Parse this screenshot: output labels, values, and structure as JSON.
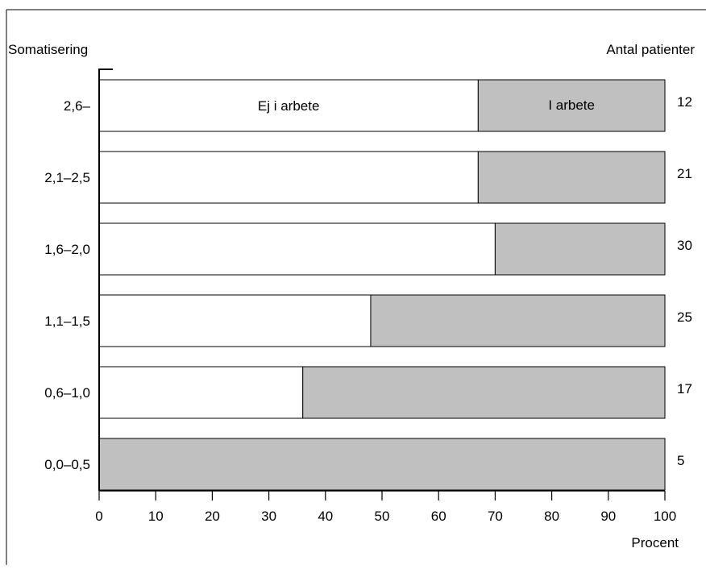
{
  "chart_data": {
    "type": "bar",
    "stacked": true,
    "orientation": "horizontal",
    "ylabel": "Somatisering",
    "right_label": "Antal patienter",
    "xlabel": "Procent",
    "xlim": [
      0,
      100
    ],
    "xticks": [
      0,
      10,
      20,
      30,
      40,
      50,
      60,
      70,
      80,
      90,
      100
    ],
    "categories": [
      "2,6–",
      "2,1–2,5",
      "1,6–2,0",
      "1,1–1,5",
      "0,6–1,0",
      "0,0–0,5"
    ],
    "counts": [
      "12",
      "21",
      "30",
      "25",
      "17",
      "5"
    ],
    "series": [
      {
        "name": "Ej i arbete",
        "values": [
          67,
          67,
          70,
          48,
          36,
          0
        ],
        "color": "#ffffff"
      },
      {
        "name": "I arbete",
        "values": [
          33,
          33,
          30,
          52,
          64,
          100
        ],
        "color": "#c0c0c0"
      }
    ],
    "grid": false
  }
}
